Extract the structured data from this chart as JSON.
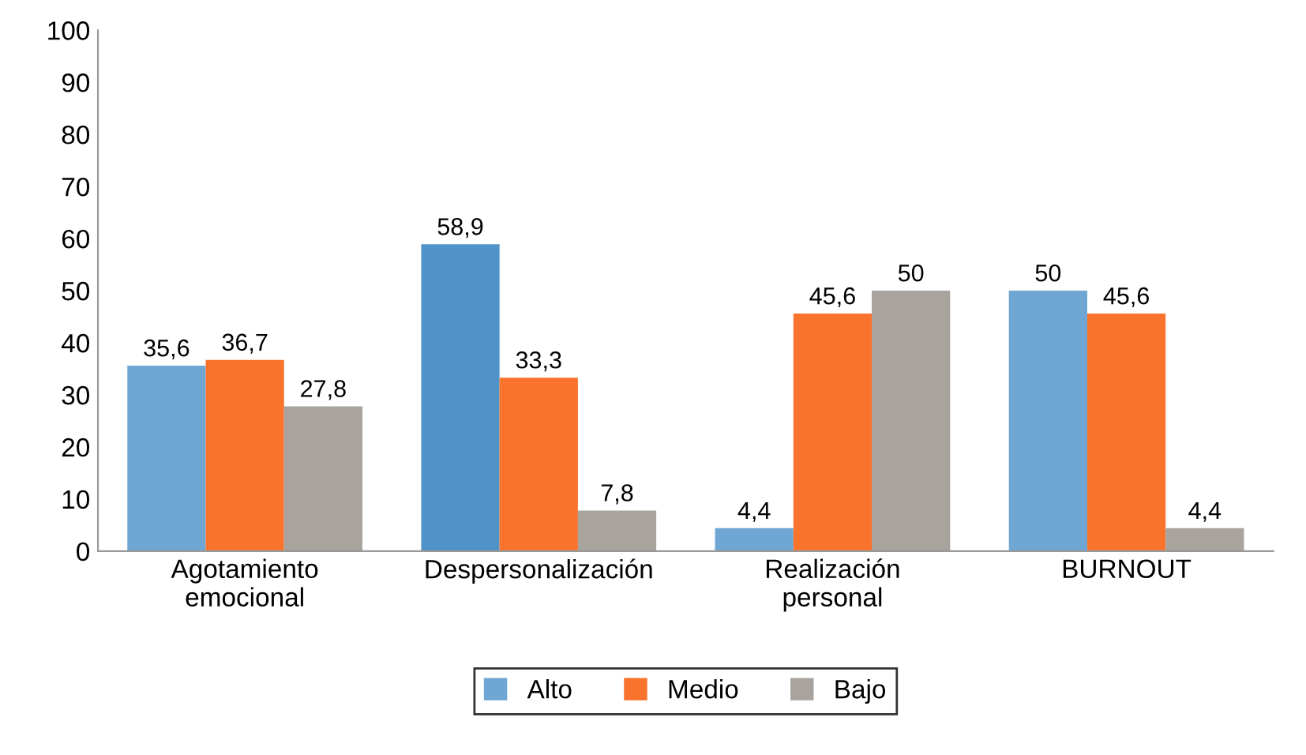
{
  "chart_data": {
    "type": "bar",
    "categories": [
      "Agotamiento\nemocional",
      "Despersonalización",
      "Realización\npersonal",
      "BURNOUT"
    ],
    "series": [
      {
        "name": "Alto",
        "color": "#6fa6d3",
        "colors": [
          "#6fa6d3",
          "#4f93c8",
          "#6fa6d3",
          "#6fa6d3"
        ],
        "values": [
          35.6,
          58.9,
          4.4,
          50
        ],
        "value_labels": [
          "35,6",
          "58,9",
          "4,4",
          "50"
        ]
      },
      {
        "name": "Medio",
        "color": "#f9732c",
        "values": [
          36.7,
          33.3,
          45.6,
          45.6
        ],
        "value_labels": [
          "36,7",
          "33,3",
          "45,6",
          "45,6"
        ]
      },
      {
        "name": "Bajo",
        "color": "#a9a39e",
        "values": [
          27.8,
          7.8,
          50,
          4.4
        ],
        "value_labels": [
          "27,8",
          "7,8",
          "50",
          "4,4"
        ]
      }
    ],
    "ylim": [
      0,
      100
    ],
    "yticks": [
      0,
      10,
      20,
      30,
      40,
      50,
      60,
      70,
      80,
      90,
      100
    ],
    "grid": false,
    "legend": "bottom"
  }
}
